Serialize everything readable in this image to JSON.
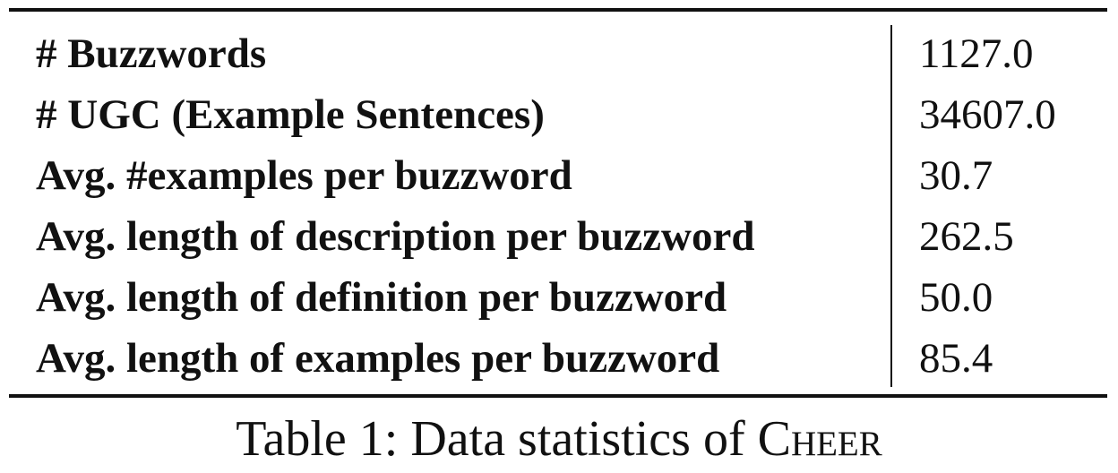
{
  "table": {
    "rows": [
      {
        "label": "# Buzzwords",
        "value": "1127.0"
      },
      {
        "label": "# UGC (Example Sentences)",
        "value": "34607.0"
      },
      {
        "label": "Avg. #examples per buzzword",
        "value": "30.7"
      },
      {
        "label": "Avg. length of description per buzzword",
        "value": "262.5"
      },
      {
        "label": "Avg. length of definition per buzzword",
        "value": "50.0"
      },
      {
        "label": "Avg. length of examples per buzzword",
        "value": "85.4"
      }
    ]
  },
  "caption": {
    "prefix": "Table 1: Data statistics of ",
    "name": "Cheer"
  }
}
